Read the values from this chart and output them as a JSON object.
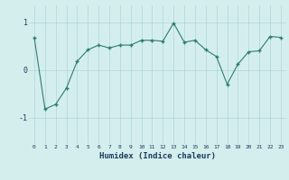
{
  "x": [
    0,
    1,
    2,
    3,
    4,
    5,
    6,
    7,
    8,
    9,
    10,
    11,
    12,
    13,
    14,
    15,
    16,
    17,
    18,
    19,
    20,
    21,
    22,
    23
  ],
  "y": [
    0.68,
    -0.82,
    -0.72,
    -0.38,
    0.18,
    0.42,
    0.52,
    0.46,
    0.52,
    0.52,
    0.62,
    0.62,
    0.6,
    0.98,
    0.58,
    0.62,
    0.42,
    0.28,
    -0.3,
    0.12,
    0.38,
    0.4,
    0.7,
    0.68
  ],
  "xlabel": "Humidex (Indice chaleur)",
  "yticks": [
    -1,
    0,
    1
  ],
  "ylim": [
    -1.55,
    1.35
  ],
  "xlim": [
    -0.5,
    23.5
  ],
  "line_color": "#2e7d6e",
  "marker": "+",
  "bg_color": "#d4eeee",
  "grid_color": "#aed6d6",
  "tick_label_color": "#1a3a5c",
  "xlabel_color": "#1a3a5c",
  "ytick_labels": [
    "-1",
    "0",
    "1"
  ]
}
